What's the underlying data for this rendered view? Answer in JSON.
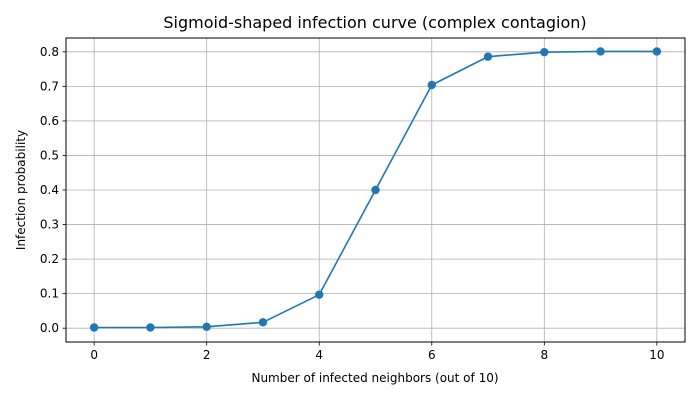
{
  "chart_data": {
    "type": "line",
    "title": "Sigmoid-shaped infection curve (complex contagion)",
    "xlabel": "Number of infected neighbors (out of 10)",
    "ylabel": "Infection probability",
    "x": [
      0,
      1,
      2,
      3,
      4,
      5,
      6,
      7,
      8,
      9,
      10
    ],
    "series": [
      {
        "values": [
          0.002,
          0.002,
          0.004,
          0.017,
          0.097,
          0.4,
          0.704,
          0.786,
          0.799,
          0.801,
          0.801
        ],
        "color": "#1f77b4",
        "marker": "circle"
      }
    ],
    "xlim": [
      -0.5,
      10.5
    ],
    "ylim": [
      -0.04,
      0.84
    ],
    "xticks": [
      0,
      2,
      4,
      6,
      8,
      10
    ],
    "yticks": [
      0.0,
      0.1,
      0.2,
      0.3,
      0.4,
      0.5,
      0.6,
      0.7,
      0.8
    ],
    "grid": true,
    "legend": "none"
  }
}
